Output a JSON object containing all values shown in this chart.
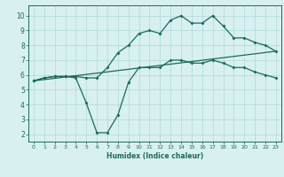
{
  "xlabel": "Humidex (Indice chaleur)",
  "bg_color": "#d8f0f0",
  "grid_color": "#afd8d8",
  "line_color": "#1a6b5a",
  "xlim": [
    -0.5,
    23.5
  ],
  "ylim": [
    1.5,
    10.7
  ],
  "xticks": [
    0,
    1,
    2,
    3,
    4,
    5,
    6,
    7,
    8,
    9,
    10,
    11,
    12,
    13,
    14,
    15,
    16,
    17,
    18,
    19,
    20,
    21,
    22,
    23
  ],
  "yticks": [
    2,
    3,
    4,
    5,
    6,
    7,
    8,
    9,
    10
  ],
  "line1_x": [
    0,
    1,
    2,
    3,
    4,
    5,
    6,
    7,
    8,
    9,
    10,
    11,
    12,
    13,
    14,
    15,
    16,
    17,
    18,
    19,
    20,
    21,
    22,
    23
  ],
  "line1_y": [
    5.6,
    5.8,
    5.9,
    5.9,
    5.9,
    5.8,
    5.8,
    6.5,
    7.5,
    8.0,
    8.8,
    9.0,
    8.8,
    9.7,
    10.0,
    9.5,
    9.5,
    10.0,
    9.3,
    8.5,
    8.5,
    8.2,
    8.0,
    7.6
  ],
  "line2_x": [
    0,
    1,
    2,
    3,
    4,
    5,
    6,
    7,
    8,
    9,
    10,
    11,
    12,
    13,
    14,
    15,
    16,
    17,
    18,
    19,
    20,
    21,
    22,
    23
  ],
  "line2_y": [
    5.6,
    5.8,
    5.9,
    5.9,
    5.8,
    4.1,
    2.1,
    2.1,
    3.3,
    5.5,
    6.5,
    6.5,
    6.5,
    7.0,
    7.0,
    6.8,
    6.8,
    7.0,
    6.8,
    6.5,
    6.5,
    6.2,
    6.0,
    5.8
  ],
  "line3_x": [
    0,
    23
  ],
  "line3_y": [
    5.6,
    7.6
  ]
}
